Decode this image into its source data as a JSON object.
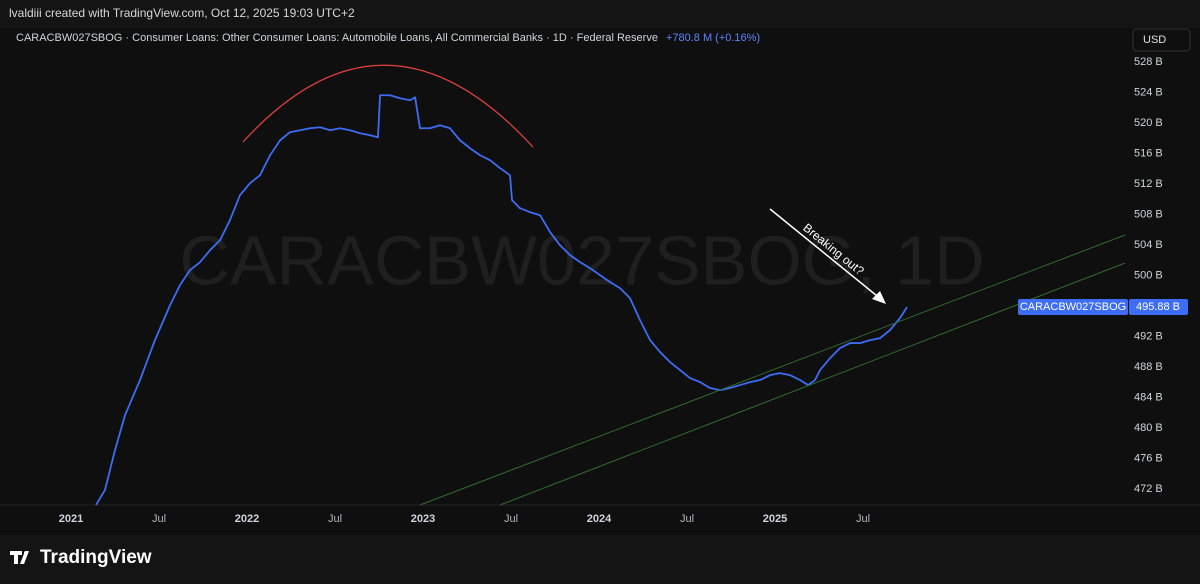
{
  "header": "lvaldiii created with TradingView.com, Oct 12, 2025 19:03 UTC+2",
  "footer_brand": "TradingView",
  "chart_data": {
    "type": "line",
    "title": "CARACBW027SBOG · Consumer Loans: Other Consumer Loans: Automobile Loans, All Commercial Banks · 1D · Federal Reserve",
    "change": "+780.8 M (+0.16%)",
    "watermark": "CARACBW027SBOG, 1D",
    "currency": "USD",
    "annotations": [
      "Breaking out?"
    ],
    "x": [
      2021.142,
      2021.193,
      2021.25,
      2021.307,
      2021.392,
      2021.477,
      2021.563,
      2021.619,
      2021.676,
      2021.733,
      2021.79,
      2021.847,
      2021.903,
      2021.96,
      2022.017,
      2022.074,
      2022.131,
      2022.188,
      2022.244,
      2022.301,
      2022.358,
      2022.415,
      2022.472,
      2022.528,
      2022.585,
      2022.642,
      2022.699,
      2022.744,
      2022.756,
      2022.813,
      2022.869,
      2022.926,
      2022.955,
      2022.983,
      2023.04,
      2023.097,
      2023.153,
      2023.21,
      2023.267,
      2023.324,
      2023.381,
      2023.438,
      2023.494,
      2023.506,
      2023.551,
      2023.608,
      2023.665,
      2023.722,
      2023.778,
      2023.835,
      2023.892,
      2023.949,
      2024.006,
      2024.063,
      2024.119,
      2024.176,
      2024.233,
      2024.29,
      2024.347,
      2024.403,
      2024.46,
      2024.517,
      2024.574,
      2024.631,
      2024.688,
      2024.744,
      2024.801,
      2024.858,
      2024.915,
      2024.972,
      2025.028,
      2025.085,
      2025.142,
      2025.188,
      2025.227,
      2025.256,
      2025.313,
      2025.369,
      2025.426,
      2025.483,
      2025.54,
      2025.597,
      2025.653,
      2025.71,
      2025.75
    ],
    "series": [
      {
        "name": "CARACBW027SBOG",
        "color": "#3d6cf5",
        "values": [
          469.9,
          471.87,
          477.11,
          481.7,
          486.3,
          491.54,
          496.13,
          498.75,
          500.72,
          501.77,
          503.34,
          504.66,
          507.28,
          510.56,
          512.13,
          513.18,
          515.8,
          517.77,
          518.82,
          519.08,
          519.34,
          519.48,
          519.08,
          519.34,
          519.08,
          518.69,
          518.43,
          518.16,
          523.67,
          523.67,
          523.28,
          523.02,
          523.41,
          519.34,
          519.34,
          519.74,
          519.34,
          517.77,
          516.72,
          515.8,
          515.15,
          514.1,
          513.18,
          509.9,
          508.85,
          508.33,
          507.93,
          505.7,
          504.0,
          502.69,
          501.77,
          500.98,
          500.07,
          499.15,
          498.36,
          497.05,
          494.16,
          491.54,
          489.97,
          488.66,
          487.61,
          486.56,
          486.03,
          485.25,
          484.98,
          485.25,
          485.64,
          486.03,
          486.3,
          486.95,
          487.21,
          486.95,
          486.3,
          485.64,
          486.3,
          487.61,
          489.18,
          490.49,
          491.15,
          491.15,
          491.54,
          491.8,
          492.85,
          494.43,
          495.88
        ]
      }
    ],
    "last_price_label": {
      "series": "CARACBW027SBOG",
      "value": 495.88,
      "label": "495.88 B"
    },
    "xlim": [
      2020.642,
      2026.96
    ],
    "xticks": [
      2021,
      {
        "value": 2021.5,
        "label": "Jul"
      },
      2022,
      {
        "value": 2022.5,
        "label": "Jul"
      },
      2023,
      {
        "value": 2023.5,
        "label": "Jul"
      },
      2024,
      {
        "value": 2024.5,
        "label": "Jul"
      },
      2025,
      {
        "value": 2025.5,
        "label": "Jul"
      }
    ],
    "ylim": [
      469.9,
      532.5
    ],
    "yticks": [
      {
        "value": 472,
        "label": "472 B"
      },
      {
        "value": 476,
        "label": "476 B"
      },
      {
        "value": 480,
        "label": "480 B"
      },
      {
        "value": 484,
        "label": "484 B"
      },
      {
        "value": 488,
        "label": "488 B"
      },
      {
        "value": 492,
        "label": "492 B"
      },
      {
        "value": 496,
        "label": "496 B"
      },
      {
        "value": 500,
        "label": "500 B"
      },
      {
        "value": 504,
        "label": "504 B"
      },
      {
        "value": 508,
        "label": "508 B"
      },
      {
        "value": 512,
        "label": "512 B"
      },
      {
        "value": 516,
        "label": "516 B"
      },
      {
        "value": 520,
        "label": "520 B"
      },
      {
        "value": 524,
        "label": "524 B"
      },
      {
        "value": 528,
        "label": "528 B"
      }
    ],
    "grid": false
  }
}
